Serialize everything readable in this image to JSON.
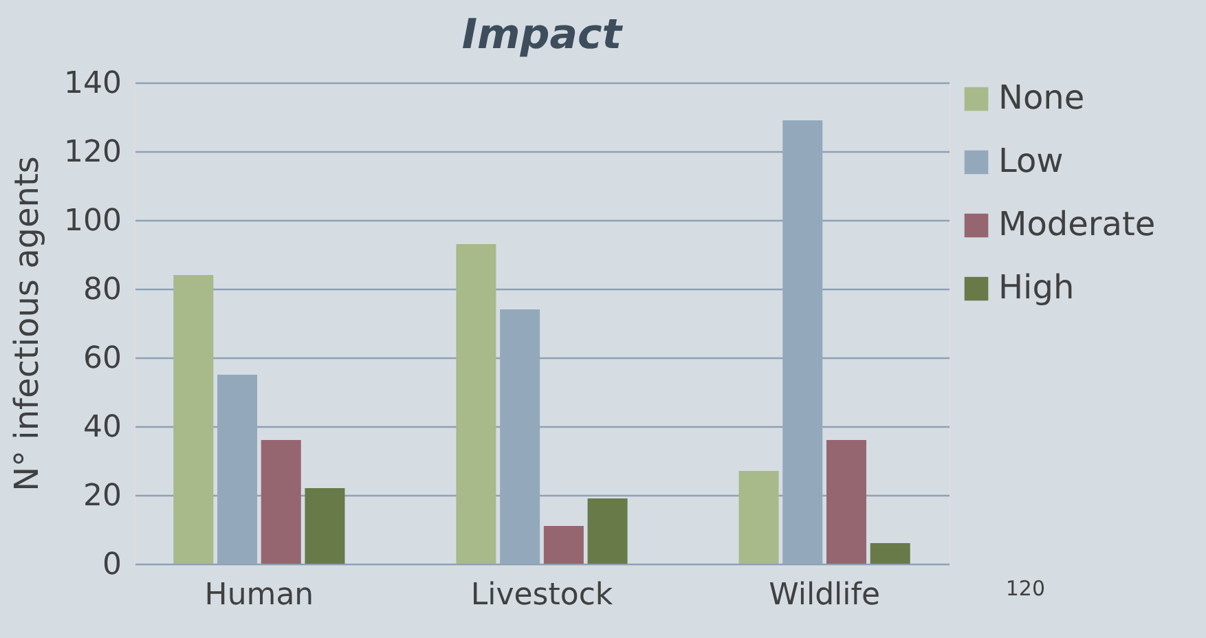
{
  "chart_data": {
    "type": "bar",
    "title": "Impact",
    "ylabel": "N° infectious agents",
    "categories": [
      "Human",
      "Livestock",
      "Wildlife"
    ],
    "series": [
      {
        "name": "None",
        "color": "#a8b98a",
        "values": [
          84,
          93,
          27
        ]
      },
      {
        "name": "Low",
        "color": "#93a9bb",
        "values": [
          55,
          74,
          129
        ]
      },
      {
        "name": "Moderate",
        "color": "#956570",
        "values": [
          36,
          11,
          36
        ]
      },
      {
        "name": "High",
        "color": "#677a48",
        "values": [
          22,
          19,
          6
        ]
      }
    ],
    "ylim": [
      0,
      140
    ],
    "yticks": [
      0,
      20,
      40,
      60,
      80,
      100,
      120,
      140
    ],
    "grid": "y",
    "legend": "right",
    "annotations": [
      "120"
    ]
  }
}
